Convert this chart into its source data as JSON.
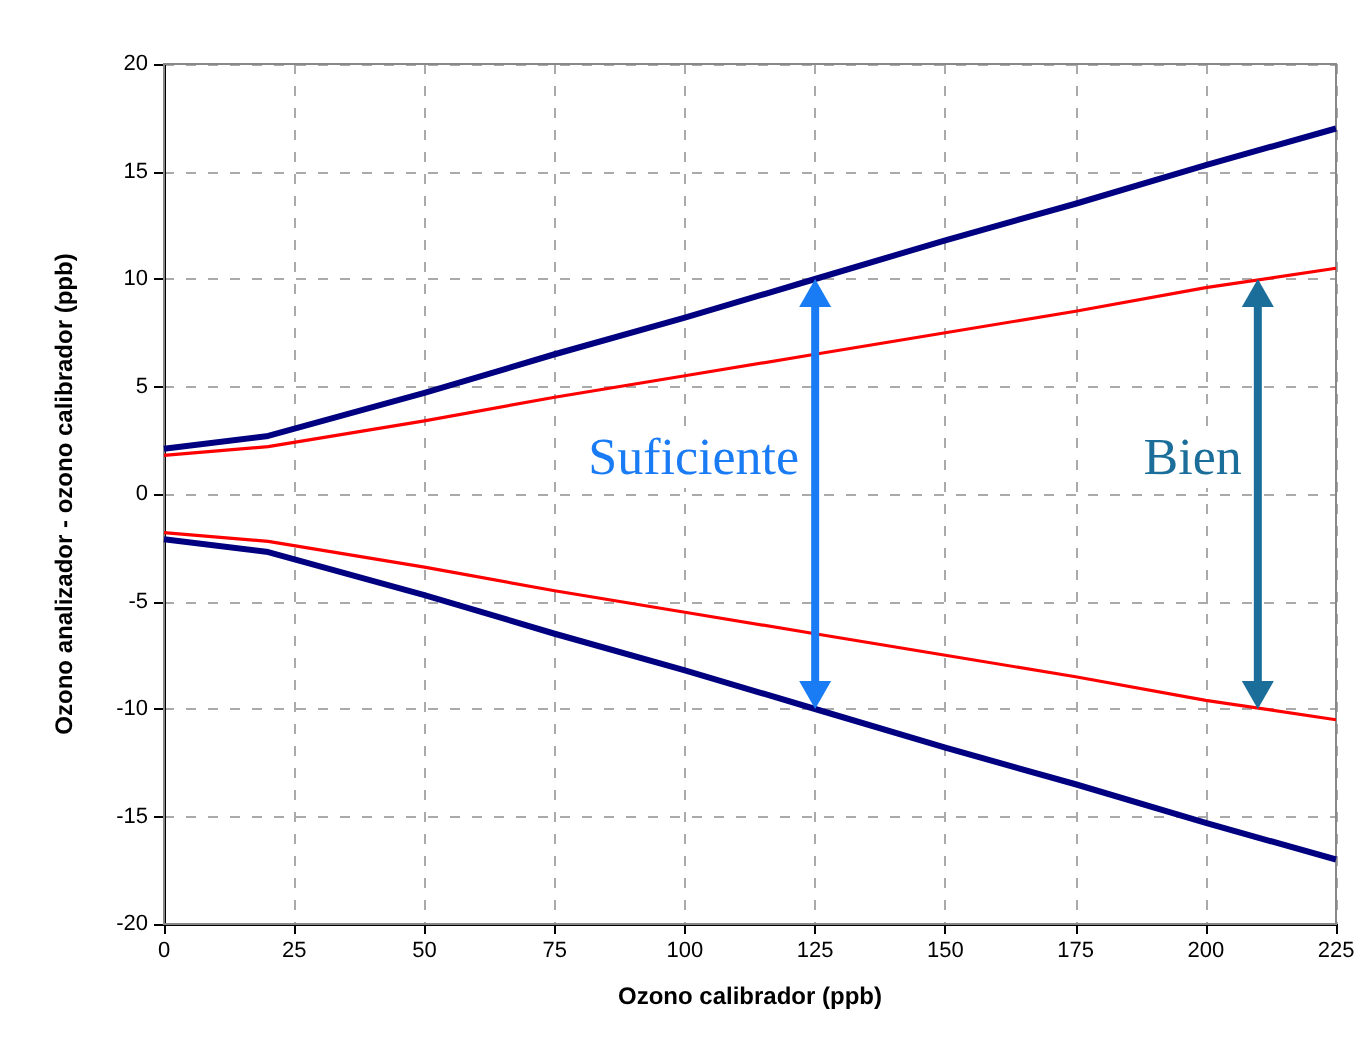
{
  "chart_data": {
    "type": "line",
    "xlabel": "Ozono calibrador (ppb)",
    "ylabel": "Ozono analizador - ozono calibrador (ppb)",
    "x": [
      0,
      20,
      50,
      75,
      100,
      125,
      150,
      175,
      200,
      225
    ],
    "series": [
      {
        "color": "#000080",
        "values": [
          2.1,
          2.7,
          4.7,
          6.5,
          8.2,
          10,
          11.8,
          13.5,
          15.3,
          17
        ]
      },
      {
        "color": "#ff0000",
        "values": [
          1.8,
          2.2,
          3.4,
          4.5,
          5.5,
          6.5,
          7.5,
          8.5,
          9.6,
          10.5
        ]
      },
      {
        "color": "#ff0000",
        "values": [
          -1.8,
          -2.2,
          -3.4,
          -4.5,
          -5.5,
          -6.5,
          -7.5,
          -8.5,
          -9.6,
          -10.5
        ]
      },
      {
        "color": "#000080",
        "values": [
          -2.1,
          -2.7,
          -4.7,
          -6.5,
          -8.2,
          -10,
          -11.8,
          -13.5,
          -15.3,
          -17
        ]
      }
    ],
    "xlim": [
      0,
      225
    ],
    "xticks": [
      0,
      25,
      50,
      75,
      100,
      125,
      150,
      175,
      200,
      225
    ],
    "ylim": [
      -20,
      20
    ],
    "yticks": [
      -20,
      -15,
      -10,
      -5,
      0,
      5,
      10,
      15,
      20
    ],
    "grid": true,
    "marker": "none",
    "line_style": "solid",
    "annotations": [
      "Suficiente",
      "Bien"
    ]
  }
}
